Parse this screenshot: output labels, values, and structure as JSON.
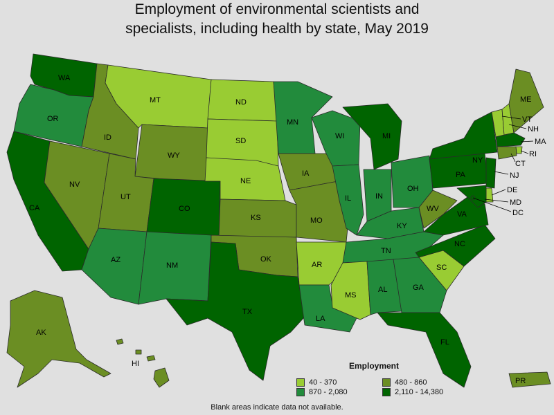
{
  "title": {
    "line1": "Employment of environmental scientists and",
    "line2": "specialists, including health by state, May 2019"
  },
  "colors": {
    "c1": "#99cc33",
    "c2": "#6b8e23",
    "c3": "#228b3c",
    "c4": "#006400"
  },
  "legend": {
    "title": "Employment",
    "items": [
      {
        "label": "40 - 370",
        "class": "c1"
      },
      {
        "label": "480 - 860",
        "class": "c2"
      },
      {
        "label": "870 - 2,080",
        "class": "c3"
      },
      {
        "label": "2,110 - 14,380",
        "class": "c4"
      }
    ]
  },
  "footnote": "Blank areas indicate data not available.",
  "states": {
    "WA": {
      "label": "WA",
      "class": "c4"
    },
    "OR": {
      "label": "OR",
      "class": "c3"
    },
    "CA": {
      "label": "CA",
      "class": "c4"
    },
    "NV": {
      "label": "NV",
      "class": "c2"
    },
    "ID": {
      "label": "ID",
      "class": "c2"
    },
    "MT": {
      "label": "MT",
      "class": "c1"
    },
    "WY": {
      "label": "WY",
      "class": "c2"
    },
    "UT": {
      "label": "UT",
      "class": "c2"
    },
    "AZ": {
      "label": "AZ",
      "class": "c3"
    },
    "CO": {
      "label": "CO",
      "class": "c4"
    },
    "NM": {
      "label": "NM",
      "class": "c3"
    },
    "ND": {
      "label": "ND",
      "class": "c1"
    },
    "SD": {
      "label": "SD",
      "class": "c1"
    },
    "NE": {
      "label": "NE",
      "class": "c1"
    },
    "KS": {
      "label": "KS",
      "class": "c2"
    },
    "OK": {
      "label": "OK",
      "class": "c2"
    },
    "TX": {
      "label": "TX",
      "class": "c4"
    },
    "MN": {
      "label": "MN",
      "class": "c3"
    },
    "IA": {
      "label": "IA",
      "class": "c2"
    },
    "MO": {
      "label": "MO",
      "class": "c2"
    },
    "AR": {
      "label": "AR",
      "class": "c1"
    },
    "LA": {
      "label": "LA",
      "class": "c3"
    },
    "WI": {
      "label": "WI",
      "class": "c3"
    },
    "IL": {
      "label": "IL",
      "class": "c3"
    },
    "MI": {
      "label": "MI",
      "class": "c4"
    },
    "IN": {
      "label": "IN",
      "class": "c3"
    },
    "OH": {
      "label": "OH",
      "class": "c3"
    },
    "KY": {
      "label": "KY",
      "class": "c3"
    },
    "TN": {
      "label": "TN",
      "class": "c3"
    },
    "MS": {
      "label": "MS",
      "class": "c1"
    },
    "AL": {
      "label": "AL",
      "class": "c3"
    },
    "GA": {
      "label": "GA",
      "class": "c3"
    },
    "FL": {
      "label": "FL",
      "class": "c4"
    },
    "SC": {
      "label": "SC",
      "class": "c1"
    },
    "NC": {
      "label": "NC",
      "class": "c4"
    },
    "VA": {
      "label": "VA",
      "class": "c4"
    },
    "WV": {
      "label": "WV",
      "class": "c2"
    },
    "PA": {
      "label": "PA",
      "class": "c4"
    },
    "NY": {
      "label": "NY",
      "class": "c4"
    },
    "VT": {
      "label": "VT",
      "class": "c1"
    },
    "NH": {
      "label": "NH",
      "class": "c1"
    },
    "ME": {
      "label": "ME",
      "class": "c2"
    },
    "MA": {
      "label": "MA",
      "class": "c4"
    },
    "RI": {
      "label": "RI",
      "class": "c1"
    },
    "CT": {
      "label": "CT",
      "class": "c2"
    },
    "NJ": {
      "label": "NJ",
      "class": "c4"
    },
    "DE": {
      "label": "DE",
      "class": "c1"
    },
    "MD": {
      "label": "MD",
      "class": "c4"
    },
    "DC": {
      "label": "DC",
      "class": "c4"
    },
    "AK": {
      "label": "AK",
      "class": "c2"
    },
    "HI": {
      "label": "HI",
      "class": "c2"
    },
    "PR": {
      "label": "PR",
      "class": "c2"
    }
  }
}
